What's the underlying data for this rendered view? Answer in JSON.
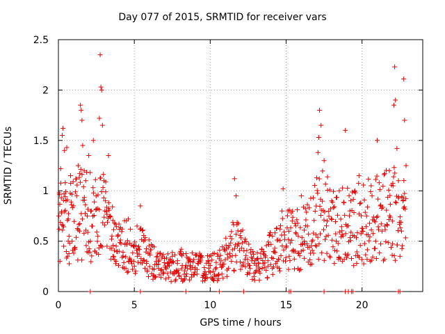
{
  "chart_data": {
    "type": "scatter",
    "title": "Day 077 of 2015, SRMTID for receiver vars",
    "xlabel": "GPS time / hours",
    "ylabel": "SRMTID / TECUs",
    "xlim": [
      0,
      24
    ],
    "ylim": [
      0,
      2.5
    ],
    "xticks": [
      0,
      5,
      10,
      15,
      20
    ],
    "xtick_labels": [
      "0",
      "5",
      "10",
      "15",
      "20"
    ],
    "yticks": [
      0,
      0.5,
      1,
      1.5,
      2,
      2.5
    ],
    "ytick_labels": [
      "0",
      "0.5",
      "1",
      "1.5",
      "2",
      "2.5"
    ],
    "grid": true,
    "marker": "+",
    "color": "#e00000",
    "series": [
      {
        "name": "SRMTID",
        "points": [
          [
            0.05,
            0.62
          ],
          [
            0.1,
            0.3
          ],
          [
            0.15,
            1.22
          ],
          [
            0.2,
            0.78
          ],
          [
            0.25,
            1.55
          ],
          [
            0.3,
            1.62
          ],
          [
            0.35,
            0.45
          ],
          [
            0.4,
            1.4
          ],
          [
            0.45,
            1.08
          ],
          [
            0.5,
            0.9
          ],
          [
            0.55,
            1.43
          ],
          [
            0.6,
            0.35
          ],
          [
            0.65,
            0.72
          ],
          [
            0.7,
            0.55
          ],
          [
            0.8,
            1.15
          ],
          [
            0.9,
            0.5
          ],
          [
            1.0,
            0.85
          ],
          [
            1.1,
            0.42
          ],
          [
            1.2,
            0.95
          ],
          [
            1.3,
            1.25
          ],
          [
            1.4,
            0.6
          ],
          [
            1.45,
            1.85
          ],
          [
            1.5,
            1.8
          ],
          [
            1.55,
            1.7
          ],
          [
            1.6,
            1.45
          ],
          [
            1.7,
            1.2
          ],
          [
            1.8,
            1.1
          ],
          [
            1.9,
            0.75
          ],
          [
            2.0,
            1.35
          ],
          [
            2.1,
            0.5
          ],
          [
            2.2,
            0.65
          ],
          [
            2.3,
            1.5
          ],
          [
            2.4,
            0.4
          ],
          [
            2.5,
            0.82
          ],
          [
            2.6,
            0.55
          ],
          [
            2.7,
            1.72
          ],
          [
            2.75,
            2.35
          ],
          [
            2.8,
            2.03
          ],
          [
            2.85,
            2.0
          ],
          [
            2.9,
            1.65
          ],
          [
            3.0,
            1.1
          ],
          [
            3.1,
            0.9
          ],
          [
            3.2,
            0.45
          ],
          [
            3.3,
            1.35
          ],
          [
            3.4,
            0.75
          ],
          [
            3.5,
            0.52
          ],
          [
            3.6,
            0.35
          ],
          [
            3.7,
            0.68
          ],
          [
            3.8,
            0.3
          ],
          [
            3.9,
            0.55
          ],
          [
            4.0,
            0.4
          ],
          [
            4.2,
            0.62
          ],
          [
            4.4,
            0.48
          ],
          [
            4.6,
            0.72
          ],
          [
            4.8,
            0.3
          ],
          [
            5.0,
            0.45
          ],
          [
            5.2,
            0.35
          ],
          [
            5.4,
            0.85
          ],
          [
            5.6,
            0.5
          ],
          [
            5.8,
            0.28
          ],
          [
            6.0,
            0.38
          ],
          [
            6.3,
            0.22
          ],
          [
            6.6,
            0.3
          ],
          [
            6.9,
            0.18
          ],
          [
            7.2,
            0.25
          ],
          [
            7.5,
            0.35
          ],
          [
            7.8,
            0.2
          ],
          [
            8.1,
            0.42
          ],
          [
            8.4,
            0.15
          ],
          [
            8.7,
            0.3
          ],
          [
            9.0,
            0.22
          ],
          [
            9.3,
            0.38
          ],
          [
            9.6,
            0.18
          ],
          [
            9.9,
            0.28
          ],
          [
            10.2,
            0.2
          ],
          [
            10.5,
            0.35
          ],
          [
            10.8,
            0.25
          ],
          [
            11.1,
            0.15
          ],
          [
            11.4,
            0.3
          ],
          [
            11.6,
            1.12
          ],
          [
            11.7,
            0.95
          ],
          [
            11.8,
            0.45
          ],
          [
            12.0,
            0.22
          ],
          [
            12.3,
            0.32
          ],
          [
            12.6,
            0.18
          ],
          [
            12.9,
            0.28
          ],
          [
            13.2,
            0.2
          ],
          [
            13.5,
            0.38
          ],
          [
            13.8,
            0.25
          ],
          [
            14.1,
            0.55
          ],
          [
            14.4,
            0.3
          ],
          [
            14.6,
            0.62
          ],
          [
            14.8,
            1.02
          ],
          [
            15.0,
            0.45
          ],
          [
            15.2,
            0.35
          ],
          [
            15.4,
            0.7
          ],
          [
            15.6,
            0.4
          ],
          [
            15.8,
            0.55
          ],
          [
            16.0,
            0.95
          ],
          [
            16.2,
            0.5
          ],
          [
            16.4,
            0.65
          ],
          [
            16.6,
            0.38
          ],
          [
            16.8,
            0.58
          ],
          [
            17.0,
            0.45
          ],
          [
            17.1,
            1.38
          ],
          [
            17.15,
            1.53
          ],
          [
            17.2,
            1.8
          ],
          [
            17.3,
            1.65
          ],
          [
            17.5,
            1.3
          ],
          [
            17.7,
            0.7
          ],
          [
            18.0,
            0.9
          ],
          [
            18.3,
            0.5
          ],
          [
            18.5,
            1.0
          ],
          [
            18.7,
            0.3
          ],
          [
            18.9,
            1.6
          ],
          [
            19.0,
            0.65
          ],
          [
            19.2,
            0.8
          ],
          [
            19.5,
            0.55
          ],
          [
            19.8,
            1.15
          ],
          [
            20.0,
            0.6
          ],
          [
            20.3,
            0.75
          ],
          [
            20.6,
            1.05
          ],
          [
            20.9,
            0.5
          ],
          [
            21.0,
            1.5
          ],
          [
            21.2,
            0.85
          ],
          [
            21.5,
            0.65
          ],
          [
            21.8,
            1.2
          ],
          [
            22.0,
            0.7
          ],
          [
            22.1,
            1.85
          ],
          [
            22.15,
            2.23
          ],
          [
            22.2,
            1.9
          ],
          [
            22.3,
            1.42
          ],
          [
            22.4,
            1.1
          ],
          [
            22.5,
            0.35
          ],
          [
            22.6,
            0.6
          ],
          [
            22.7,
            0.9
          ],
          [
            22.75,
            2.11
          ],
          [
            22.8,
            1.7
          ],
          [
            22.9,
            1.25
          ]
        ],
        "baseline_points_x": [
          2.1,
          5.4,
          8.4,
          10.6,
          12.2,
          15.2,
          15.3,
          17.5,
          18.9,
          19.1,
          19.3,
          19.4,
          22.4,
          22.5
        ]
      }
    ]
  }
}
